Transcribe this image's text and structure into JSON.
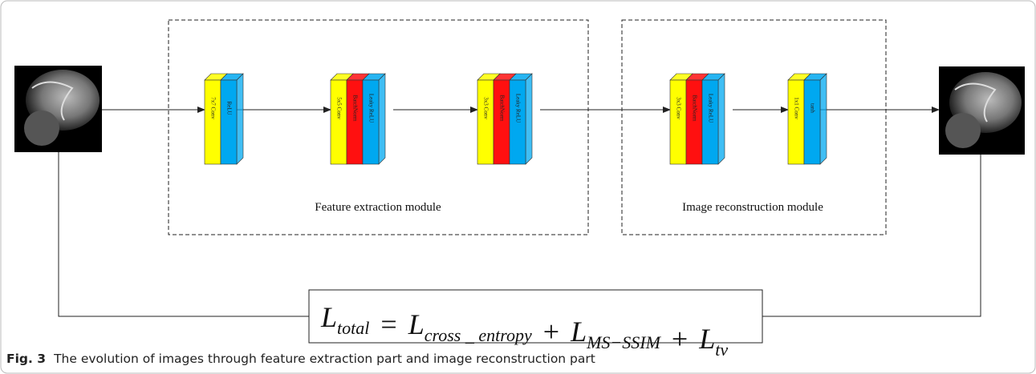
{
  "modules": [
    {
      "label": "Feature extraction module"
    },
    {
      "label": "Image reconstruction  module"
    }
  ],
  "blocks": [
    {
      "layers": [
        {
          "label": "7x7 Conv",
          "color": "#ffff00"
        },
        {
          "label": "ReLU",
          "color": "#00a8f0"
        }
      ]
    },
    {
      "layers": [
        {
          "label": "5x5 Conv",
          "color": "#ffff00"
        },
        {
          "label": "BatchNorm",
          "color": "#ff1010"
        },
        {
          "label": "Leaky ReLU",
          "color": "#00a8f0"
        }
      ]
    },
    {
      "layers": [
        {
          "label": "3x3 Conv",
          "color": "#ffff00"
        },
        {
          "label": "BatchNorm",
          "color": "#ff1010"
        },
        {
          "label": "Leaky ReLU",
          "color": "#00a8f0"
        }
      ]
    },
    {
      "layers": [
        {
          "label": "3x3 Conv",
          "color": "#ffff00"
        },
        {
          "label": "BatchNorm",
          "color": "#ff1010"
        },
        {
          "label": "Leaky ReLU",
          "color": "#00a8f0"
        }
      ]
    },
    {
      "layers": [
        {
          "label": "1x1 Conv",
          "color": "#ffff00"
        },
        {
          "label": "tanh",
          "color": "#00a8f0"
        }
      ]
    }
  ],
  "formula": [
    {
      "base": "L",
      "sub": "total"
    },
    {
      "op": "="
    },
    {
      "base": "L",
      "sub": "cross _ entropy"
    },
    {
      "op": "+"
    },
    {
      "base": "L",
      "sub": "MS−SSIM"
    },
    {
      "op": "+"
    },
    {
      "base": "L",
      "sub": "tv"
    }
  ],
  "caption": {
    "label": "Fig. 3",
    "text": "The evolution of images through feature extraction part and image reconstruction part"
  }
}
